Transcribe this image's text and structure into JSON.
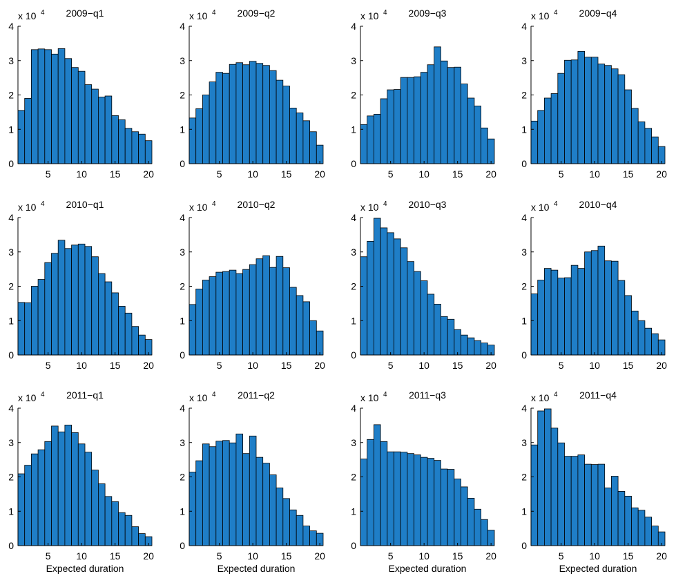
{
  "colors": {
    "bar_fill": "#1f7ec7",
    "bar_edge": "#000000",
    "axis": "#000000"
  },
  "chart_data": [
    {
      "type": "bar",
      "title": "2009−q1",
      "xlabel": "",
      "y_multiplier": "x 10",
      "y_multiplier_exp": "4",
      "x": [
        1,
        2,
        3,
        4,
        5,
        6,
        7,
        8,
        9,
        10,
        11,
        12,
        13,
        14,
        15,
        16,
        17,
        18,
        19,
        20
      ],
      "values": [
        15500,
        19000,
        33200,
        33400,
        33200,
        31900,
        33500,
        30600,
        28000,
        26900,
        23000,
        21700,
        19400,
        19700,
        14000,
        12800,
        10300,
        9300,
        8600,
        6700
      ],
      "xlim": [
        0.5,
        20.5
      ],
      "ylim": [
        0,
        40000
      ],
      "xticks": [
        5,
        10,
        15,
        20
      ],
      "yticks": [
        0,
        10000,
        20000,
        30000,
        40000
      ],
      "ytick_labels": [
        "0",
        "1",
        "2",
        "3",
        "4"
      ]
    },
    {
      "type": "bar",
      "title": "2009−q2",
      "xlabel": "",
      "y_multiplier": "x 10",
      "y_multiplier_exp": "4",
      "x": [
        1,
        2,
        3,
        4,
        5,
        6,
        7,
        8,
        9,
        10,
        11,
        12,
        13,
        14,
        15,
        16,
        17,
        18,
        19,
        20
      ],
      "values": [
        13300,
        16000,
        20000,
        23800,
        26600,
        26300,
        28900,
        29400,
        28800,
        29800,
        29200,
        28600,
        27100,
        24300,
        22600,
        16200,
        14800,
        12500,
        9300,
        5400
      ],
      "xlim": [
        0.5,
        20.5
      ],
      "ylim": [
        0,
        40000
      ],
      "xticks": [
        5,
        10,
        15,
        20
      ],
      "yticks": [
        0,
        10000,
        20000,
        30000,
        40000
      ],
      "ytick_labels": [
        "0",
        "1",
        "2",
        "3",
        "4"
      ]
    },
    {
      "type": "bar",
      "title": "2009−q3",
      "xlabel": "",
      "y_multiplier": "x 10",
      "y_multiplier_exp": "4",
      "x": [
        1,
        2,
        3,
        4,
        5,
        6,
        7,
        8,
        9,
        10,
        11,
        12,
        13,
        14,
        15,
        16,
        17,
        18,
        19,
        20
      ],
      "values": [
        11400,
        13900,
        14400,
        18900,
        21500,
        21600,
        25100,
        25100,
        25300,
        26600,
        28800,
        34000,
        29900,
        28000,
        28100,
        23200,
        19100,
        16800,
        10400,
        7200
      ],
      "xlim": [
        0.5,
        20.5
      ],
      "ylim": [
        0,
        40000
      ],
      "xticks": [
        5,
        10,
        15,
        20
      ],
      "yticks": [
        0,
        10000,
        20000,
        30000,
        40000
      ],
      "ytick_labels": [
        "0",
        "1",
        "2",
        "3",
        "4"
      ]
    },
    {
      "type": "bar",
      "title": "2009−q4",
      "xlabel": "",
      "y_multiplier": "x 10",
      "y_multiplier_exp": "4",
      "x": [
        1,
        2,
        3,
        4,
        5,
        6,
        7,
        8,
        9,
        10,
        11,
        12,
        13,
        14,
        15,
        16,
        17,
        18,
        19,
        20
      ],
      "values": [
        12400,
        15500,
        19100,
        20400,
        26300,
        30100,
        30200,
        32700,
        31000,
        31000,
        29000,
        28600,
        27600,
        25900,
        21500,
        16100,
        12200,
        10300,
        7800,
        5000
      ],
      "xlim": [
        0.5,
        20.5
      ],
      "ylim": [
        0,
        40000
      ],
      "xticks": [
        5,
        10,
        15,
        20
      ],
      "yticks": [
        0,
        10000,
        20000,
        30000,
        40000
      ],
      "ytick_labels": [
        "0",
        "1",
        "2",
        "3",
        "4"
      ]
    },
    {
      "type": "bar",
      "title": "2010−q1",
      "xlabel": "",
      "y_multiplier": "x 10",
      "y_multiplier_exp": "4",
      "x": [
        1,
        2,
        3,
        4,
        5,
        6,
        7,
        8,
        9,
        10,
        11,
        12,
        13,
        14,
        15,
        16,
        17,
        18,
        19,
        20
      ],
      "values": [
        15300,
        15200,
        20000,
        22000,
        26900,
        29600,
        33400,
        31000,
        32000,
        32300,
        31600,
        28600,
        23700,
        21300,
        18100,
        14200,
        12200,
        8300,
        5800,
        4500
      ],
      "xlim": [
        0.5,
        20.5
      ],
      "ylim": [
        0,
        40000
      ],
      "xticks": [
        5,
        10,
        15,
        20
      ],
      "yticks": [
        0,
        10000,
        20000,
        30000,
        40000
      ],
      "ytick_labels": [
        "0",
        "1",
        "2",
        "3",
        "4"
      ]
    },
    {
      "type": "bar",
      "title": "2010−q2",
      "xlabel": "",
      "y_multiplier": "x 10",
      "y_multiplier_exp": "4",
      "x": [
        1,
        2,
        3,
        4,
        5,
        6,
        7,
        8,
        9,
        10,
        11,
        12,
        13,
        14,
        15,
        16,
        17,
        18,
        19,
        20
      ],
      "values": [
        14700,
        19200,
        21800,
        22800,
        24100,
        24300,
        24700,
        23700,
        24900,
        26300,
        28000,
        28900,
        25500,
        28700,
        25400,
        19700,
        17300,
        15500,
        10000,
        7000
      ],
      "xlim": [
        0.5,
        20.5
      ],
      "ylim": [
        0,
        40000
      ],
      "xticks": [
        5,
        10,
        15,
        20
      ],
      "yticks": [
        0,
        10000,
        20000,
        30000,
        40000
      ],
      "ytick_labels": [
        "0",
        "1",
        "2",
        "3",
        "4"
      ]
    },
    {
      "type": "bar",
      "title": "2010−q3",
      "xlabel": "",
      "y_multiplier": "x 10",
      "y_multiplier_exp": "4",
      "x": [
        1,
        2,
        3,
        4,
        5,
        6,
        7,
        8,
        9,
        10,
        11,
        12,
        13,
        14,
        15,
        16,
        17,
        18,
        19,
        20
      ],
      "values": [
        28600,
        33100,
        39800,
        37000,
        35600,
        33800,
        31200,
        27200,
        24300,
        21600,
        17700,
        14800,
        11200,
        10400,
        7400,
        5800,
        5000,
        4200,
        3500,
        2900
      ],
      "xlim": [
        0.5,
        20.5
      ],
      "ylim": [
        0,
        40000
      ],
      "xticks": [
        5,
        10,
        15,
        20
      ],
      "yticks": [
        0,
        10000,
        20000,
        30000,
        40000
      ],
      "ytick_labels": [
        "0",
        "1",
        "2",
        "3",
        "4"
      ]
    },
    {
      "type": "bar",
      "title": "2010−q4",
      "xlabel": "",
      "y_multiplier": "x 10",
      "y_multiplier_exp": "4",
      "x": [
        1,
        2,
        3,
        4,
        5,
        6,
        7,
        8,
        9,
        10,
        11,
        12,
        13,
        14,
        15,
        16,
        17,
        18,
        19,
        20
      ],
      "values": [
        17800,
        21800,
        25200,
        24700,
        22400,
        22500,
        26100,
        25200,
        30000,
        30400,
        31700,
        27400,
        27300,
        21700,
        17300,
        12800,
        10000,
        7800,
        6200,
        4400
      ],
      "xlim": [
        0.5,
        20.5
      ],
      "ylim": [
        0,
        40000
      ],
      "xticks": [
        5,
        10,
        15,
        20
      ],
      "yticks": [
        0,
        10000,
        20000,
        30000,
        40000
      ],
      "ytick_labels": [
        "0",
        "1",
        "2",
        "3",
        "4"
      ]
    },
    {
      "type": "bar",
      "title": "2011−q1",
      "xlabel": "Expected duration",
      "y_multiplier": "x 10",
      "y_multiplier_exp": "4",
      "x": [
        1,
        2,
        3,
        4,
        5,
        6,
        7,
        8,
        9,
        10,
        11,
        12,
        13,
        14,
        15,
        16,
        17,
        18,
        19,
        20
      ],
      "values": [
        20900,
        23400,
        26700,
        27900,
        30300,
        34800,
        33100,
        35100,
        32900,
        29600,
        27200,
        22000,
        18000,
        14300,
        12800,
        9600,
        8800,
        5500,
        3500,
        2600
      ],
      "xlim": [
        0.5,
        20.5
      ],
      "ylim": [
        0,
        40000
      ],
      "xticks": [
        5,
        10,
        15,
        20
      ],
      "yticks": [
        0,
        10000,
        20000,
        30000,
        40000
      ],
      "ytick_labels": [
        "0",
        "1",
        "2",
        "3",
        "4"
      ]
    },
    {
      "type": "bar",
      "title": "2011−q2",
      "xlabel": "Expected duration",
      "y_multiplier": "x 10",
      "y_multiplier_exp": "4",
      "x": [
        1,
        2,
        3,
        4,
        5,
        6,
        7,
        8,
        9,
        10,
        11,
        12,
        13,
        14,
        15,
        16,
        17,
        18,
        19,
        20
      ],
      "values": [
        21400,
        24700,
        29600,
        28800,
        30400,
        30600,
        29900,
        32500,
        26800,
        31900,
        25700,
        24000,
        20600,
        16800,
        13700,
        10400,
        8800,
        5700,
        4300,
        3600
      ],
      "xlim": [
        0.5,
        20.5
      ],
      "ylim": [
        0,
        40000
      ],
      "xticks": [
        5,
        10,
        15,
        20
      ],
      "yticks": [
        0,
        10000,
        20000,
        30000,
        40000
      ],
      "ytick_labels": [
        "0",
        "1",
        "2",
        "3",
        "4"
      ]
    },
    {
      "type": "bar",
      "title": "2011−q3",
      "xlabel": "Expected duration",
      "y_multiplier": "x 10",
      "y_multiplier_exp": "4",
      "x": [
        1,
        2,
        3,
        4,
        5,
        6,
        7,
        8,
        9,
        10,
        11,
        12,
        13,
        14,
        15,
        16,
        17,
        18,
        19,
        20
      ],
      "values": [
        25200,
        30900,
        35200,
        30300,
        27300,
        27300,
        27200,
        26800,
        26400,
        25700,
        25400,
        24800,
        22300,
        22200,
        19400,
        17100,
        13800,
        10600,
        7600,
        4500
      ],
      "xlim": [
        0.5,
        20.5
      ],
      "ylim": [
        0,
        40000
      ],
      "xticks": [
        5,
        10,
        15,
        20
      ],
      "yticks": [
        0,
        10000,
        20000,
        30000,
        40000
      ],
      "ytick_labels": [
        "0",
        "1",
        "2",
        "3",
        "4"
      ]
    },
    {
      "type": "bar",
      "title": "2011−q4",
      "xlabel": "Expected duration",
      "y_multiplier": "x 10",
      "y_multiplier_exp": "4",
      "x": [
        1,
        2,
        3,
        4,
        5,
        6,
        7,
        8,
        9,
        10,
        11,
        12,
        13,
        14,
        15,
        16,
        17,
        18,
        19,
        20
      ],
      "values": [
        29300,
        39200,
        39800,
        34200,
        29900,
        26000,
        26000,
        26400,
        23700,
        23600,
        23700,
        16800,
        20200,
        15800,
        14400,
        11000,
        10300,
        8300,
        5700,
        4000
      ],
      "xlim": [
        0.5,
        20.5
      ],
      "ylim": [
        0,
        40000
      ],
      "xticks": [
        5,
        10,
        15,
        20
      ],
      "yticks": [
        0,
        10000,
        20000,
        30000,
        40000
      ],
      "ytick_labels": [
        "0",
        "1",
        "2",
        "3",
        "4"
      ]
    }
  ]
}
